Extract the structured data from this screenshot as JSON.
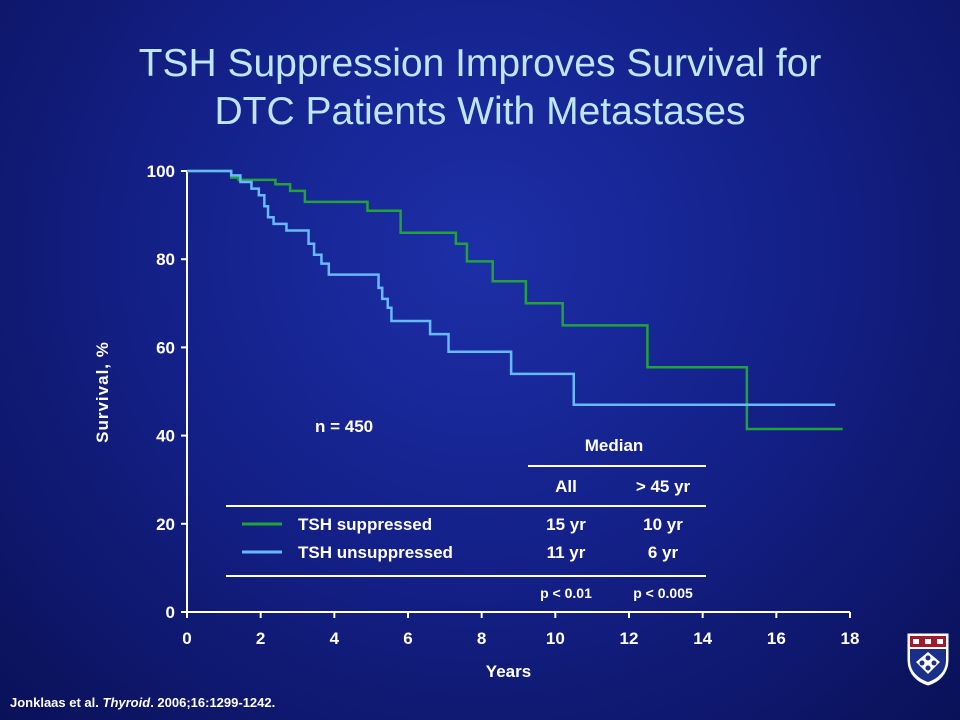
{
  "title_line1": "TSH Suppression Improves Survival for",
  "title_line2": "DTC Patients With Metastases",
  "citation": {
    "authors": "Jonklaas et al.",
    "journal": "Thyroid",
    "rest": ". 2006;16:1299-1242."
  },
  "n_label": "n = 450",
  "median_table": {
    "header": "Median",
    "col_all": "All",
    "col_older": "> 45 yr",
    "rows": [
      {
        "name": "TSH suppressed",
        "all": "15 yr",
        "older": "10 yr",
        "color": "#22a33a"
      },
      {
        "name": "TSH unsuppressed",
        "all": "11 yr",
        "older": "6 yr",
        "color": "#66b8ff"
      }
    ],
    "p_all": "p < 0.01",
    "p_older": "p < 0.005"
  },
  "colors": {
    "title": "#bfe6ff",
    "text": "#ffffff",
    "suppressed": "#22a33a",
    "unsuppressed": "#66b8ff",
    "background": "#14218a"
  },
  "chart_data": {
    "type": "line",
    "ylabel": "Survival, %",
    "xlabel": "Years",
    "xlim": [
      0,
      18
    ],
    "ylim": [
      0,
      100
    ],
    "xticks": [
      0,
      2,
      4,
      6,
      8,
      10,
      12,
      14,
      16,
      18
    ],
    "yticks": [
      0,
      20,
      40,
      60,
      80,
      100
    ],
    "grid": false,
    "step": true,
    "series": [
      {
        "name": "TSH suppressed",
        "color": "#22a33a",
        "x": [
          0,
          1.2,
          1.4,
          2.4,
          2.8,
          3.2,
          4.9,
          5.8,
          7.3,
          7.6,
          8.3,
          9.2,
          10.2,
          12.5,
          15.2,
          17.8
        ],
        "y": [
          100,
          98.5,
          98,
          97,
          95.5,
          93,
          91,
          86,
          83.5,
          79.5,
          75,
          70,
          65,
          55.5,
          41.5,
          41.5
        ]
      },
      {
        "name": "TSH unsuppressed",
        "color": "#66b8ff",
        "x": [
          0,
          1.2,
          1.45,
          1.75,
          1.95,
          2.1,
          2.2,
          2.35,
          2.7,
          3.3,
          3.45,
          3.65,
          3.85,
          5.2,
          5.3,
          5.45,
          5.55,
          6.6,
          7.1,
          8.8,
          10.5,
          17.6
        ],
        "y": [
          100,
          99,
          97.5,
          96,
          94.5,
          92,
          89.5,
          88,
          86.5,
          83.5,
          81,
          79,
          76.5,
          73.5,
          71,
          69,
          66,
          63,
          59,
          54,
          47,
          47
        ]
      }
    ]
  }
}
